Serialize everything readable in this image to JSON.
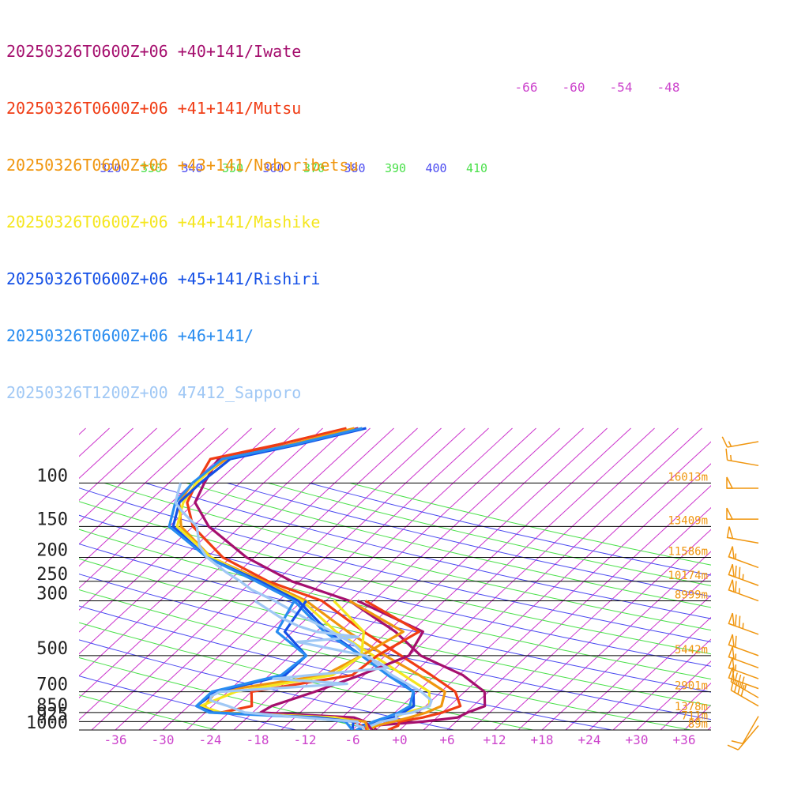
{
  "chart_data": {
    "type": "line",
    "title": "",
    "legend": {
      "placement": "top-left",
      "entries": [
        {
          "label": "20250326T0600Z+06 +40+141/Iwate",
          "color": "#a50f6e"
        },
        {
          "label": "20250326T0600Z+06 +41+141/Mutsu",
          "color": "#f03c14"
        },
        {
          "label": "20250326T0600Z+06 +43+141/Noboribetsu",
          "color": "#f0960f"
        },
        {
          "label": "20250326T0600Z+06 +44+141/Mashike",
          "color": "#f5e61e"
        },
        {
          "label": "20250326T0600Z+06 +45+141/Rishiri",
          "color": "#1450e6"
        },
        {
          "label": "20250326T0600Z+06 +46+141/",
          "color": "#288cf0"
        },
        {
          "label": "20250326T1200Z+00 47412_Sapporo",
          "color": "#a0c8f5"
        }
      ]
    },
    "x_axis": {
      "label": "",
      "ticks": [
        "-36",
        "-30",
        "-24",
        "-18",
        "-12",
        "-6",
        "+0",
        "+6",
        "+12",
        "+18",
        "+24",
        "+30",
        "+36"
      ],
      "tick_values": [
        -36,
        -30,
        -24,
        -18,
        -12,
        -6,
        0,
        6,
        12,
        18,
        24,
        30,
        36
      ]
    },
    "y_axis": {
      "label": "",
      "scale": "log-pressure",
      "ticks": [
        "100",
        "150",
        "200",
        "250",
        "300",
        "500",
        "700",
        "850",
        "925",
        "1000"
      ],
      "tick_values": [
        100,
        150,
        200,
        250,
        300,
        500,
        700,
        850,
        925,
        1000
      ]
    },
    "heights": [
      {
        "p": 100,
        "label": "16013m"
      },
      {
        "p": 150,
        "label": "13409m"
      },
      {
        "p": 200,
        "label": "11586m"
      },
      {
        "p": 250,
        "label": "10174m"
      },
      {
        "p": 300,
        "label": "8999m"
      },
      {
        "p": 500,
        "label": "5442m"
      },
      {
        "p": 700,
        "label": "2901m"
      },
      {
        "p": 850,
        "label": "1378m"
      },
      {
        "p": 925,
        "label": "711m"
      },
      {
        "p": 1000,
        "label": "89m"
      }
    ],
    "upper_temp_labels": [
      "-66",
      "-60",
      "-54",
      "-48"
    ],
    "theta_labels": [
      {
        "label": "320",
        "color": "#4a4af0"
      },
      {
        "label": "330",
        "color": "#4ae04a"
      },
      {
        "label": "340",
        "color": "#4a4af0"
      },
      {
        "label": "350",
        "color": "#4ae04a"
      },
      {
        "label": "360",
        "color": "#4a4af0"
      },
      {
        "label": "370",
        "color": "#4ae04a"
      },
      {
        "label": "380",
        "color": "#4a4af0"
      },
      {
        "label": "390",
        "color": "#4ae04a"
      },
      {
        "label": "400",
        "color": "#4a4af0"
      },
      {
        "label": "410",
        "color": "#4ae04a"
      }
    ],
    "series": [
      {
        "name": "20250326T0600Z+06 +40+141/Iwate",
        "color": "#a50f6e",
        "points": [
          [
            1000,
            -3.0
          ],
          [
            960,
            -4.0
          ],
          [
            925,
            1.8
          ],
          [
            890,
            5.6
          ],
          [
            850,
            6.2
          ],
          [
            800,
            7.5
          ],
          [
            700,
            5.5
          ],
          [
            600,
            0.5
          ],
          [
            500,
            -7.5
          ],
          [
            400,
            -14.0
          ],
          [
            300,
            -24.0
          ],
          [
            250,
            -34.0
          ],
          [
            200,
            -43.0
          ],
          [
            150,
            -52.0
          ],
          [
            120,
            -57.0
          ],
          [
            100,
            -58.5
          ],
          [
            80,
            -60.0
          ],
          [
            70,
            -53.0
          ],
          [
            60,
            -46.5
          ]
        ]
      },
      {
        "name": "20250326T0600Z+06 +41+141/Mutsu",
        "color": "#f03c14",
        "points": [
          [
            1000,
            -1.5
          ],
          [
            960,
            -0.8
          ],
          [
            925,
            -1.2
          ],
          [
            890,
            1.2
          ],
          [
            850,
            3.0
          ],
          [
            800,
            4.4
          ],
          [
            700,
            1.8
          ],
          [
            600,
            -3.5
          ],
          [
            500,
            -10.0
          ],
          [
            400,
            -18.0
          ],
          [
            300,
            -27.5
          ],
          [
            250,
            -37.0
          ],
          [
            200,
            -46.0
          ],
          [
            150,
            -54.0
          ],
          [
            120,
            -58.0
          ],
          [
            100,
            -59.5
          ],
          [
            80,
            -61.0
          ],
          [
            70,
            -54.5
          ],
          [
            60,
            -48.0
          ]
        ]
      },
      {
        "name": "20250326T0600Z+06 +43+141/Noboribetsu",
        "color": "#f0960f",
        "points": [
          [
            1000,
            -4.0
          ],
          [
            960,
            -3.5
          ],
          [
            925,
            -2.0
          ],
          [
            890,
            -0.5
          ],
          [
            850,
            1.0
          ],
          [
            800,
            2.0
          ],
          [
            700,
            0.5
          ],
          [
            600,
            -5.0
          ],
          [
            500,
            -12.0
          ],
          [
            400,
            -20.0
          ],
          [
            300,
            -29.5
          ],
          [
            250,
            -37.5
          ],
          [
            200,
            -47.5
          ],
          [
            150,
            -55.5
          ],
          [
            120,
            -59.0
          ],
          [
            100,
            -60.0
          ],
          [
            80,
            -59.0
          ],
          [
            70,
            -53.0
          ],
          [
            60,
            -47.0
          ]
        ]
      },
      {
        "name": "20250326T0600Z+06 +44+141/Mashike",
        "color": "#f5e61e",
        "points": [
          [
            1000,
            -4.5
          ],
          [
            960,
            -4.0
          ],
          [
            925,
            -3.5
          ],
          [
            890,
            -2.5
          ],
          [
            850,
            -1.5
          ],
          [
            800,
            0.5
          ],
          [
            700,
            -1.5
          ],
          [
            600,
            -7.0
          ],
          [
            500,
            -13.5
          ],
          [
            400,
            -21.5
          ],
          [
            300,
            -30.0
          ],
          [
            250,
            -38.0
          ],
          [
            200,
            -47.5
          ],
          [
            150,
            -56.0
          ],
          [
            120,
            -58.5
          ],
          [
            100,
            -59.5
          ],
          [
            80,
            -59.5
          ],
          [
            70,
            -52.5
          ],
          [
            60,
            -46.0
          ]
        ]
      },
      {
        "name": "20250326T0600Z+06 +45+141/Rishiri",
        "color": "#1450e6",
        "points": [
          [
            1000,
            -5.0
          ],
          [
            960,
            -5.5
          ],
          [
            925,
            -4.0
          ],
          [
            890,
            -2.5
          ],
          [
            850,
            -2.0
          ],
          [
            800,
            -1.5
          ],
          [
            700,
            -3.5
          ],
          [
            600,
            -8.5
          ],
          [
            500,
            -15.0
          ],
          [
            400,
            -22.5
          ],
          [
            300,
            -30.5
          ],
          [
            250,
            -38.0
          ],
          [
            200,
            -48.0
          ],
          [
            150,
            -56.5
          ],
          [
            120,
            -59.0
          ],
          [
            100,
            -59.0
          ],
          [
            80,
            -58.5
          ],
          [
            70,
            -52.0
          ],
          [
            60,
            -45.5
          ]
        ]
      },
      {
        "name": "20250326T0600Z+06 +46+141/",
        "color": "#288cf0",
        "points": [
          [
            1000,
            -5.5
          ],
          [
            960,
            -5.0
          ],
          [
            925,
            -4.5
          ],
          [
            890,
            -3.5
          ],
          [
            850,
            -2.5
          ],
          [
            800,
            -2.0
          ],
          [
            700,
            -3.5
          ],
          [
            600,
            -9.0
          ],
          [
            500,
            -15.0
          ],
          [
            400,
            -23.0
          ],
          [
            300,
            -31.0
          ],
          [
            250,
            -38.5
          ],
          [
            200,
            -48.0
          ],
          [
            150,
            -57.0
          ],
          [
            120,
            -59.5
          ],
          [
            100,
            -60.0
          ],
          [
            80,
            -59.5
          ],
          [
            70,
            -52.5
          ],
          [
            60,
            -46.0
          ]
        ]
      },
      {
        "name": "20250326T1200Z+00 47412_Sapporo",
        "color": "#a0c8f5",
        "points": [
          [
            1000,
            -3.8
          ],
          [
            975,
            -4.5
          ],
          [
            960,
            -4.2
          ],
          [
            925,
            -3.5
          ],
          [
            900,
            -2.0
          ],
          [
            870,
            -2.5
          ],
          [
            850,
            -0.8
          ],
          [
            800,
            0.5
          ],
          [
            760,
            0.0
          ],
          [
            700,
            -2.5
          ],
          [
            600,
            -8.5
          ],
          [
            500,
            -14.5
          ],
          [
            450,
            -17.5
          ],
          [
            400,
            -22.0
          ],
          [
            350,
            -27.5
          ],
          [
            300,
            -33.5
          ],
          [
            270,
            -38.0
          ],
          [
            250,
            -40.5
          ],
          [
            230,
            -43.5
          ],
          [
            200,
            -48.0
          ],
          [
            180,
            -50.5
          ],
          [
            150,
            -53.5
          ],
          [
            130,
            -57.5
          ],
          [
            120,
            -59.5
          ],
          [
            100,
            -61.5
          ]
        ]
      }
    ],
    "dewpoints": [
      {
        "name": "20250326T0600Z+06 +40+141/Iwate",
        "color": "#a50f6e",
        "points": [
          [
            1000,
            -3.5
          ],
          [
            925,
            -5.5
          ],
          [
            890,
            -7.5
          ],
          [
            850,
            -20.0
          ],
          [
            800,
            -19.5
          ],
          [
            700,
            -16.0
          ],
          [
            600,
            -12.5
          ],
          [
            500,
            -9.0
          ],
          [
            400,
            -10.5
          ],
          [
            300,
            -23.0
          ]
        ]
      },
      {
        "name": "20250326T0600Z+06 +41+141/Mutsu",
        "color": "#f03c14",
        "points": [
          [
            1000,
            -4.0
          ],
          [
            925,
            -7.0
          ],
          [
            890,
            -10.0
          ],
          [
            850,
            -25.0
          ],
          [
            800,
            -22.0
          ],
          [
            700,
            -24.0
          ],
          [
            600,
            -13.5
          ],
          [
            500,
            -13.0
          ],
          [
            400,
            -11.0
          ],
          [
            300,
            -22.0
          ]
        ]
      },
      {
        "name": "20250326T0600Z+06 +43+141/Noboribetsu",
        "color": "#f0960f",
        "points": [
          [
            1000,
            -4.0
          ],
          [
            925,
            -5.5
          ],
          [
            890,
            -10.0
          ],
          [
            850,
            -26.0
          ],
          [
            800,
            -28.0
          ],
          [
            700,
            -28.5
          ],
          [
            600,
            -17.0
          ],
          [
            500,
            -15.0
          ],
          [
            400,
            -13.0
          ],
          [
            300,
            -24.0
          ]
        ]
      },
      {
        "name": "20250326T0600Z+06 +44+141/Mashike",
        "color": "#f5e61e",
        "points": [
          [
            1000,
            -6.0
          ],
          [
            925,
            -7.0
          ],
          [
            890,
            -10.0
          ],
          [
            850,
            -25.0
          ],
          [
            800,
            -28.5
          ],
          [
            700,
            -26.0
          ],
          [
            600,
            -16.0
          ],
          [
            500,
            -15.0
          ],
          [
            400,
            -18.0
          ],
          [
            300,
            -26.0
          ]
        ]
      },
      {
        "name": "20250326T0600Z+06 +45+141/Rishiri",
        "color": "#1450e6",
        "points": [
          [
            1000,
            -6.0
          ],
          [
            925,
            -7.0
          ],
          [
            890,
            -12.0
          ],
          [
            850,
            -26.0
          ],
          [
            800,
            -29.0
          ],
          [
            700,
            -28.5
          ],
          [
            600,
            -22.0
          ],
          [
            500,
            -22.0
          ],
          [
            400,
            -28.0
          ],
          [
            300,
            -29.5
          ]
        ]
      },
      {
        "name": "20250326T0600Z+06 +46+141/",
        "color": "#288cf0",
        "points": [
          [
            1000,
            -6.0
          ],
          [
            925,
            -8.0
          ],
          [
            890,
            -13.0
          ],
          [
            850,
            -26.5
          ],
          [
            800,
            -29.0
          ],
          [
            700,
            -29.0
          ],
          [
            600,
            -22.5
          ],
          [
            500,
            -22.0
          ],
          [
            400,
            -29.0
          ],
          [
            300,
            -31.0
          ]
        ]
      },
      {
        "name": "20250326T1200Z+00 47412_Sapporo",
        "color": "#a0c8f5",
        "points": [
          [
            1000,
            -4.5
          ],
          [
            975,
            -5.0
          ],
          [
            960,
            -6.0
          ],
          [
            925,
            -6.5
          ],
          [
            900,
            -12.0
          ],
          [
            870,
            -18.0
          ],
          [
            850,
            -22.0
          ],
          [
            800,
            -25.0
          ],
          [
            760,
            -28.0
          ],
          [
            730,
            -28.5
          ],
          [
            700,
            -28.0
          ],
          [
            650,
            -13.0
          ],
          [
            620,
            -23.0
          ],
          [
            560,
            -10.0
          ],
          [
            500,
            -14.5
          ],
          [
            440,
            -25.0
          ],
          [
            420,
            -18.0
          ],
          [
            400,
            -24.0
          ],
          [
            380,
            -27.0
          ],
          [
            350,
            -30.5
          ],
          [
            300,
            -36.0
          ]
        ]
      }
    ],
    "winds": [
      {
        "p": 960,
        "dir": 220,
        "kt": 10
      },
      {
        "p": 880,
        "dir": 210,
        "kt": 10
      },
      {
        "p": 800,
        "dir": 300,
        "kt": 40
      },
      {
        "p": 740,
        "dir": 300,
        "kt": 45
      },
      {
        "p": 680,
        "dir": 290,
        "kt": 50
      },
      {
        "p": 620,
        "dir": 290,
        "kt": 55
      },
      {
        "p": 560,
        "dir": 290,
        "kt": 55
      },
      {
        "p": 500,
        "dir": 290,
        "kt": 60
      },
      {
        "p": 410,
        "dir": 290,
        "kt": 75
      },
      {
        "p": 300,
        "dir": 290,
        "kt": 65
      },
      {
        "p": 260,
        "dir": 290,
        "kt": 75
      },
      {
        "p": 220,
        "dir": 290,
        "kt": 55
      },
      {
        "p": 175,
        "dir": 280,
        "kt": 50
      },
      {
        "p": 140,
        "dir": 270,
        "kt": 50
      },
      {
        "p": 105,
        "dir": 270,
        "kt": 50
      },
      {
        "p": 85,
        "dir": 280,
        "kt": 15
      },
      {
        "p": 68,
        "dir": 260,
        "kt": 15
      }
    ],
    "colors": {
      "isotherm": "#cc33cc",
      "dry_adiabat_green": "#4ae04a",
      "dry_adiabat_blue": "#4a4af0",
      "height_label": "#f0960f",
      "axis_label": "#cc44cc",
      "wind_barb": "#f0960f"
    }
  }
}
